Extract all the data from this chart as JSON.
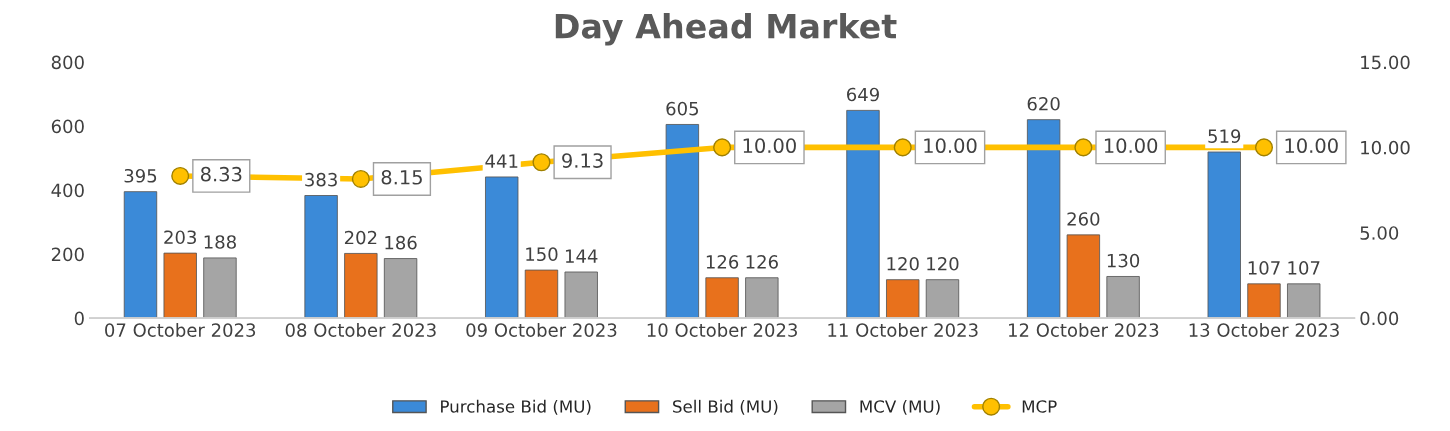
{
  "chart_data": {
    "type": "bar",
    "title": "Day Ahead Market",
    "categories": [
      "07 October 2023",
      "08 October 2023",
      "09 October 2023",
      "10 October 2023",
      "11 October 2023",
      "12 October 2023",
      "13 October 2023"
    ],
    "series": [
      {
        "name": "Purchase Bid (MU)",
        "color": "#3b8ad8",
        "values": [
          395,
          383,
          441,
          605,
          649,
          620,
          519
        ]
      },
      {
        "name": "Sell Bid (MU)",
        "color": "#e8711c",
        "values": [
          203,
          202,
          150,
          126,
          120,
          260,
          107
        ]
      },
      {
        "name": "MCV (MU)",
        "color": "#a5a5a5",
        "values": [
          188,
          186,
          144,
          126,
          120,
          130,
          107
        ]
      },
      {
        "name": "MCP",
        "type": "line",
        "axis": "y2",
        "color": "#ffc000",
        "marker": "circle",
        "values": [
          8.33,
          8.15,
          9.13,
          10.0,
          10.0,
          10.0,
          10.0
        ],
        "value_labels": [
          "8.33",
          "8.15",
          "9.13",
          "10.00",
          "10.00",
          "10.00",
          "10.00"
        ]
      }
    ],
    "ylim": [
      0,
      800
    ],
    "yticks": [
      0,
      200,
      400,
      600,
      800
    ],
    "y2lim": [
      0,
      15
    ],
    "y2ticks": [
      {
        "value": 0,
        "label": "0.00"
      },
      {
        "value": 5,
        "label": "5.00"
      },
      {
        "value": 10,
        "label": "10.00"
      },
      {
        "value": 15,
        "label": "15.00"
      }
    ],
    "data_labels": true,
    "legend": "bottom",
    "grid": false
  }
}
